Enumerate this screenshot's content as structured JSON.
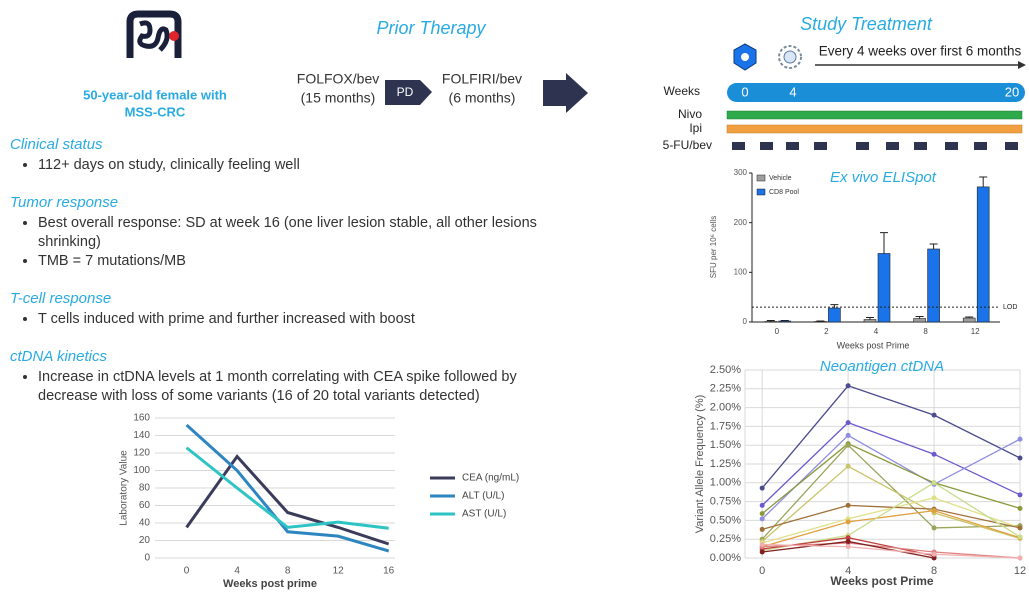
{
  "patient": {
    "lines": [
      "50-year-old female with",
      "MSS-CRC"
    ]
  },
  "prior_therapy": {
    "title": "Prior Therapy",
    "first": {
      "name": "FOLFOX/bev",
      "duration": "(15 months)"
    },
    "transition": "PD",
    "second": {
      "name": "FOLFIRI/bev",
      "duration": "(6 months)"
    }
  },
  "study_treatment": {
    "title": "Study Treatment",
    "schedule": "Every 4 weeks over first 6 months",
    "rows": {
      "weeks": "Weeks",
      "nivo": "Nivo",
      "ipi": "Ipi",
      "chemo": "5-FU/bev"
    },
    "week_marks": [
      "0",
      "4",
      "20"
    ]
  },
  "sections": [
    {
      "heading": "Clinical status",
      "bullets": [
        "112+ days on study, clinically feeling well"
      ]
    },
    {
      "heading": "Tumor response",
      "bullets": [
        "Best overall response: SD at week 16 (one liver lesion stable, all other lesions shrinking)",
        "TMB = 7 mutations/MB"
      ]
    },
    {
      "heading": "T-cell response",
      "bullets": [
        "T cells induced with prime and further increased with boost"
      ]
    },
    {
      "heading": "ctDNA kinetics",
      "bullets": [
        "Increase in ctDNA levels at 1 month correlating with CEA spike followed by decrease with loss of some variants (16 of 20 total variants detected)"
      ]
    }
  ],
  "chart_data": [
    {
      "type": "line",
      "xlabel": "Weeks post prime",
      "ylabel": "Laboratory Value",
      "x": [
        0,
        4,
        8,
        12,
        16
      ],
      "xlim": [
        -2.5,
        16.5
      ],
      "xticks": [
        0,
        4,
        8,
        12,
        16
      ],
      "ylim": [
        0,
        160
      ],
      "yticks": [
        0,
        20,
        40,
        60,
        80,
        100,
        120,
        140,
        160
      ],
      "grid": "y",
      "legend": "right",
      "series": [
        {
          "name": "CEA (ng/mL)",
          "color": "#3b3b5c",
          "values": [
            35,
            116,
            52,
            35,
            16
          ]
        },
        {
          "name": "ALT (U/L)",
          "color": "#2e86c1",
          "values": [
            152,
            100,
            30,
            25,
            8
          ]
        },
        {
          "name": "AST (U/L)",
          "color": "#2ec4c4",
          "values": [
            126,
            80,
            35,
            41,
            34
          ]
        }
      ]
    },
    {
      "type": "bar",
      "title": "Ex vivo ELISpot",
      "xlabel": "Weeks post Prime",
      "ylabel": "SFU per 10⁶ cells",
      "categories": [
        "0",
        "2",
        "4",
        "8",
        "12"
      ],
      "ylim": [
        0,
        300
      ],
      "yticks": [
        0,
        100,
        200,
        300
      ],
      "grid": "none",
      "legend": "upper left",
      "lod": {
        "value": 30,
        "label": "LOD"
      },
      "series": [
        {
          "name": "Vehicle",
          "color": "#9e9e9e",
          "values": [
            1,
            1,
            5,
            7,
            8
          ],
          "errors": [
            2,
            1,
            4,
            4,
            2
          ]
        },
        {
          "name": "CD8 Pool",
          "color": "#1a73e8",
          "values": [
            2,
            28,
            138,
            147,
            272
          ],
          "errors": [
            1,
            7,
            42,
            10,
            20
          ]
        }
      ]
    },
    {
      "type": "line",
      "title": "Neoantigen ctDNA",
      "xlabel": "Weeks post Prime",
      "ylabel": "Variant Allele Frequency (%)",
      "x": [
        0,
        4,
        8,
        12
      ],
      "xlim": [
        -0.8,
        12
      ],
      "xticks": [
        0,
        4,
        8,
        12
      ],
      "ylim": [
        0,
        2.5
      ],
      "yticks": [
        {
          "value": 0,
          "label": "0.00%"
        },
        {
          "value": 0.25,
          "label": "0.25%"
        },
        {
          "value": 0.5,
          "label": "0.50%"
        },
        {
          "value": 0.75,
          "label": "0.75%"
        },
        {
          "value": 1,
          "label": "1.00%"
        },
        {
          "value": 1.25,
          "label": "1.25%"
        },
        {
          "value": 1.5,
          "label": "1.50%"
        },
        {
          "value": 1.75,
          "label": "1.75%"
        },
        {
          "value": 2,
          "label": "2.00%"
        },
        {
          "value": 2.25,
          "label": "2.25%"
        },
        {
          "value": 2.5,
          "label": "2.50%"
        }
      ],
      "grid": "both",
      "markers": true,
      "series": [
        {
          "color": "#4b4b8f",
          "values": [
            0.93,
            2.29,
            1.9,
            1.33
          ]
        },
        {
          "color": "#6a5acd",
          "values": [
            0.7,
            1.8,
            1.38,
            0.84
          ]
        },
        {
          "color": "#8e8ee0",
          "values": [
            0.52,
            1.63,
            0.98,
            1.58
          ]
        },
        {
          "color": "#8a9a3a",
          "values": [
            0.59,
            1.52,
            1.0,
            0.66
          ]
        },
        {
          "color": "#9aa55a",
          "values": [
            0.25,
            1.5,
            0.4,
            0.43
          ]
        },
        {
          "color": "#c9c36a",
          "values": [
            0.22,
            1.22,
            0.6,
            0.26
          ]
        },
        {
          "color": "#e0e08a",
          "values": [
            0.2,
            0.52,
            0.8,
            0.4
          ]
        },
        {
          "color": "#a0703a",
          "values": [
            0.38,
            0.7,
            0.65,
            0.4
          ]
        },
        {
          "color": "#e0a040",
          "values": [
            0.15,
            0.48,
            0.63,
            0.27
          ]
        },
        {
          "color": "#c8dc8a",
          "values": [
            0.1,
            0.3,
            1.0,
            0.28
          ]
        },
        {
          "color": "#c04040",
          "values": [
            0.12,
            0.27,
            0.03,
            null
          ]
        },
        {
          "color": "#e08080",
          "values": [
            0.15,
            0.2,
            0.08,
            0.0
          ]
        },
        {
          "color": "#802020",
          "values": [
            0.08,
            0.22,
            0.0,
            null
          ]
        },
        {
          "color": "#f0b0b0",
          "values": [
            0.18,
            0.15,
            0.05,
            0.0
          ]
        }
      ]
    }
  ]
}
